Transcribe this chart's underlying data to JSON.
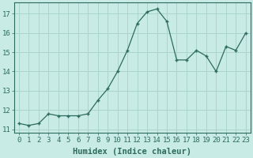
{
  "x": [
    0,
    1,
    2,
    3,
    4,
    5,
    6,
    7,
    8,
    9,
    10,
    11,
    12,
    13,
    14,
    15,
    16,
    17,
    18,
    19,
    20,
    21,
    22,
    23
  ],
  "y": [
    11.3,
    11.2,
    11.3,
    11.8,
    11.7,
    11.7,
    11.7,
    11.8,
    12.5,
    13.1,
    14.0,
    15.1,
    16.5,
    17.1,
    17.25,
    16.6,
    14.6,
    14.6,
    15.1,
    14.8,
    14.0,
    15.3,
    15.1,
    16.0
  ],
  "line_color": "#2d6b5e",
  "marker": "+",
  "bg_color": "#c8ebe6",
  "grid_color": "#aad4cc",
  "xlabel": "Humidex (Indice chaleur)",
  "ylim": [
    10.8,
    17.6
  ],
  "xlim": [
    -0.5,
    23.5
  ],
  "yticks": [
    11,
    12,
    13,
    14,
    15,
    16,
    17
  ],
  "xticks": [
    0,
    1,
    2,
    3,
    4,
    5,
    6,
    7,
    8,
    9,
    10,
    11,
    12,
    13,
    14,
    15,
    16,
    17,
    18,
    19,
    20,
    21,
    22,
    23
  ],
  "font_color": "#2d6b5e",
  "tick_fontsize": 6.5,
  "label_fontsize": 7.5
}
